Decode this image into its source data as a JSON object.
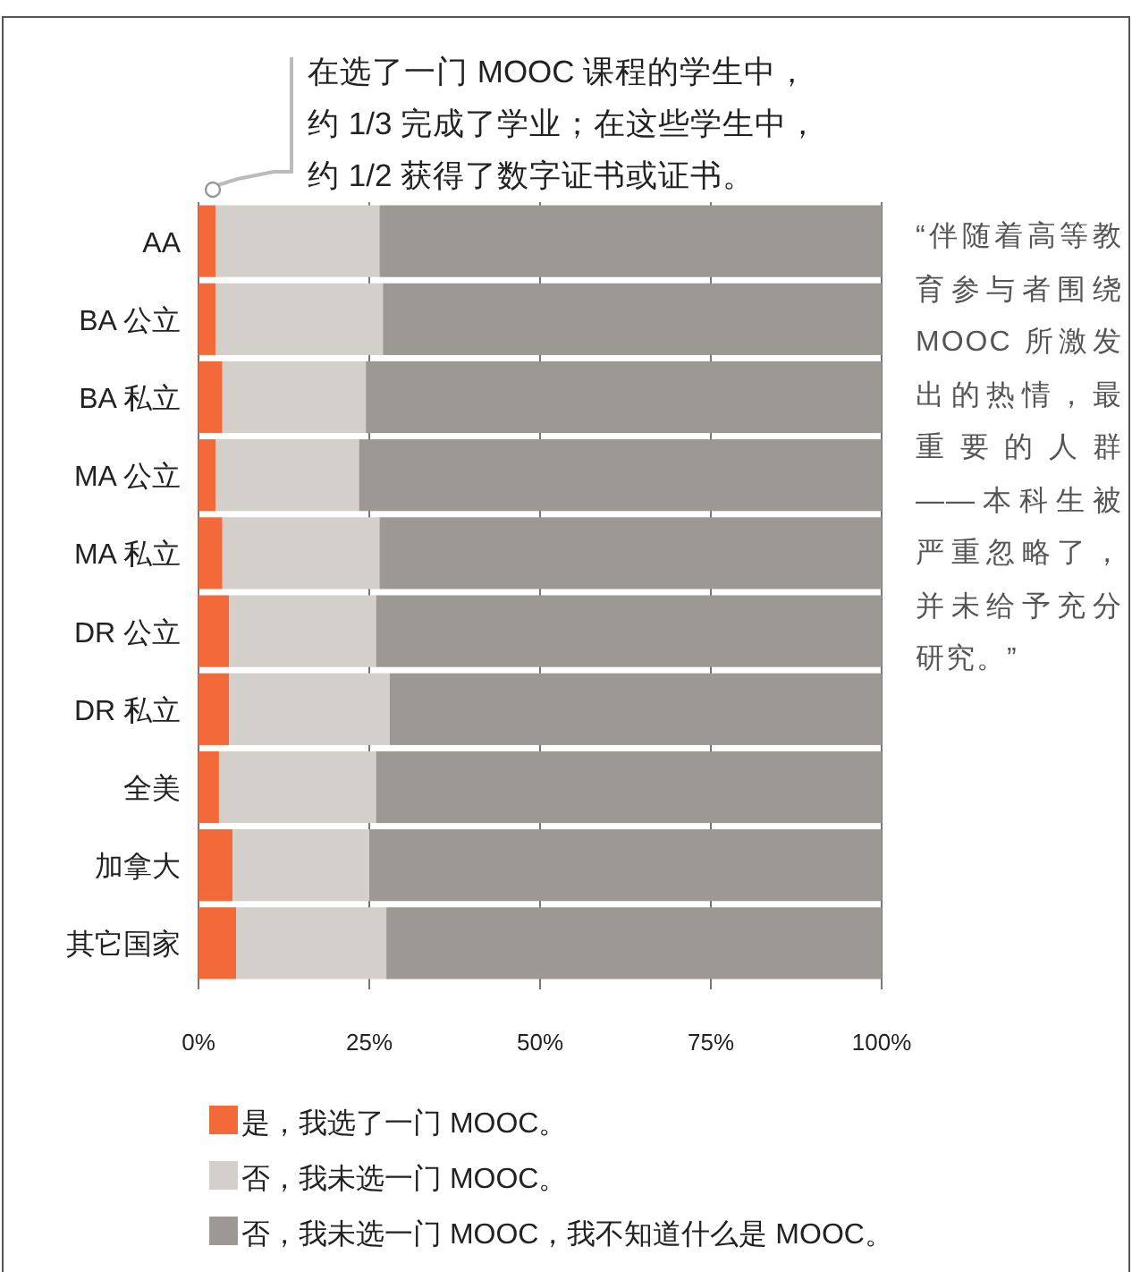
{
  "chart_data": {
    "type": "bar",
    "orientation": "horizontal",
    "stacked": true,
    "categories": [
      "AA",
      "BA 公立",
      "BA 私立",
      "MA 公立",
      "MA 私立",
      "DR 公立",
      "DR 私立",
      "全美",
      "加拿大",
      "其它国家"
    ],
    "series": [
      {
        "name": "是，我选了一门 MOOC。",
        "color": "#f26a3a",
        "values": [
          2.5,
          2.5,
          3.5,
          2.5,
          3.5,
          4.5,
          4.5,
          3,
          5,
          5.5
        ]
      },
      {
        "name": "否，我未选一门 MOOC。",
        "color": "#d3cfcb",
        "values": [
          24,
          24.5,
          21,
          21,
          23,
          21.5,
          23.5,
          23,
          20,
          22
        ]
      },
      {
        "name": "否，我未选一门 MOOC，我不知道什么是 MOOC。",
        "color": "#9c9893",
        "values": [
          73.5,
          73,
          75.5,
          76.5,
          73.5,
          74,
          72,
          74,
          75,
          72.5
        ]
      }
    ],
    "xlim": [
      0,
      100
    ],
    "xticks": [
      {
        "value": 0,
        "label": "0%"
      },
      {
        "value": 25,
        "label": "25%"
      },
      {
        "value": 50,
        "label": "50%"
      },
      {
        "value": 75,
        "label": "75%"
      },
      {
        "value": 100,
        "label": "100%"
      }
    ],
    "grid": "x",
    "legend": "bottom",
    "annotations": [
      "在选了一门 MOOC 课程的学生中，约 1/3 完成了学业；在这些学生中，约 1/2 获得了数字证书或证书。",
      "“伴随着高等教育参与者围绕 MOOC 所激发出的热情，最重要的人群——本科生被严重忽略了，并未给予充分研究。”"
    ]
  }
}
